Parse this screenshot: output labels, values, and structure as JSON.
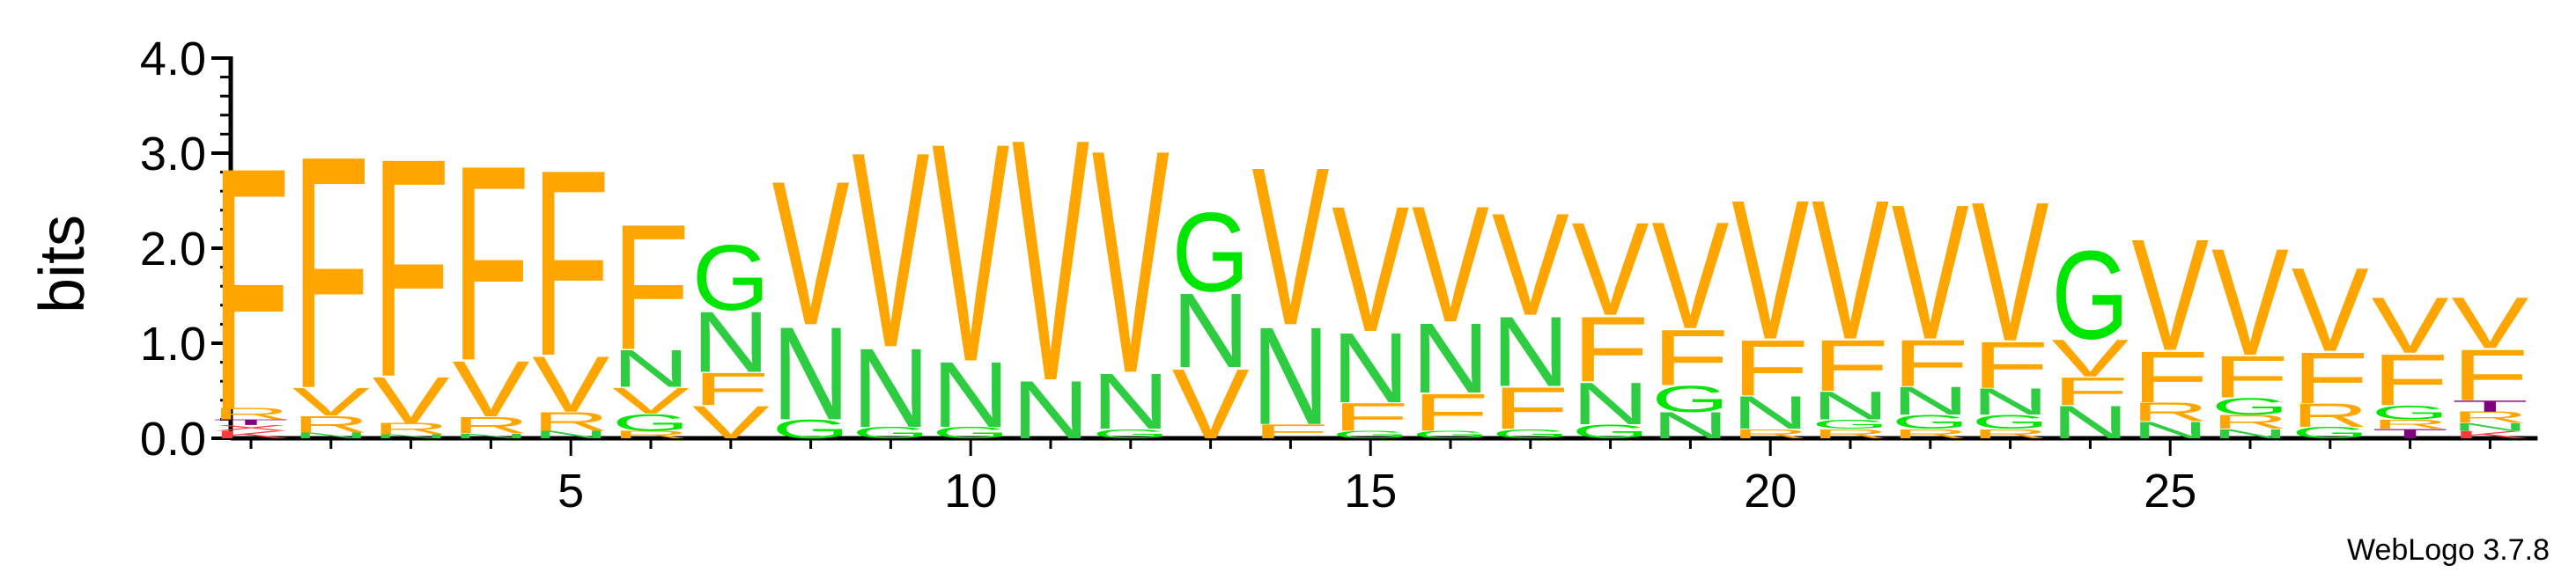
{
  "chart_data": {
    "type": "sequence-logo",
    "ylabel": "bits",
    "ylim": [
      0,
      4.0
    ],
    "y_ticks": [
      "0.0",
      "1.0",
      "2.0",
      "3.0",
      "4.0"
    ],
    "x_ticks": [
      5,
      10,
      15,
      20,
      25
    ],
    "colors": {
      "F": "#FFA500",
      "V": "#FFA500",
      "R": "#FFA500",
      "N": "#2ECC40",
      "G": "#00E600",
      "T": "#800080",
      "K": "#FF3B3B"
    },
    "positions": [
      {
        "pos": 1,
        "stack": [
          [
            "K",
            0.08
          ],
          [
            "X",
            0.06
          ],
          [
            "T",
            0.06
          ],
          [
            "R",
            0.12
          ],
          [
            "F",
            2.6
          ]
        ]
      },
      {
        "pos": 2,
        "stack": [
          [
            "N",
            0.06
          ],
          [
            "R",
            0.18
          ],
          [
            "V",
            0.3
          ],
          [
            "F",
            2.5
          ]
        ]
      },
      {
        "pos": 3,
        "stack": [
          [
            "N",
            0.04
          ],
          [
            "R",
            0.12
          ],
          [
            "V",
            0.5
          ],
          [
            "F",
            2.35
          ]
        ]
      },
      {
        "pos": 4,
        "stack": [
          [
            "N",
            0.05
          ],
          [
            "R",
            0.18
          ],
          [
            "V",
            0.6
          ],
          [
            "F",
            2.1
          ]
        ]
      },
      {
        "pos": 5,
        "stack": [
          [
            "N",
            0.08
          ],
          [
            "R",
            0.2
          ],
          [
            "V",
            0.6
          ],
          [
            "F",
            2.0
          ]
        ]
      },
      {
        "pos": 6,
        "stack": [
          [
            "R",
            0.08
          ],
          [
            "G",
            0.18
          ],
          [
            "V",
            0.28
          ],
          [
            "N",
            0.4
          ],
          [
            "F",
            1.35
          ]
        ]
      },
      {
        "pos": 7,
        "stack": [
          [
            "V",
            0.35
          ],
          [
            "F",
            0.35
          ],
          [
            "N",
            0.65
          ],
          [
            "G",
            0.7
          ]
        ]
      },
      {
        "pos": 8,
        "stack": [
          [
            "G",
            0.2
          ],
          [
            "N",
            1.0
          ],
          [
            "V",
            1.55
          ]
        ]
      },
      {
        "pos": 9,
        "stack": [
          [
            "G",
            0.12
          ],
          [
            "N",
            0.85
          ],
          [
            "V",
            2.1
          ]
        ]
      },
      {
        "pos": 10,
        "stack": [
          [
            "G",
            0.12
          ],
          [
            "N",
            0.7
          ],
          [
            "V",
            2.35
          ]
        ]
      },
      {
        "pos": 11,
        "stack": [
          [
            "N",
            0.62
          ],
          [
            "V",
            2.6
          ]
        ]
      },
      {
        "pos": 12,
        "stack": [
          [
            "G",
            0.1
          ],
          [
            "N",
            0.6
          ],
          [
            "V",
            2.4
          ]
        ]
      },
      {
        "pos": 13,
        "stack": [
          [
            "V",
            0.75
          ],
          [
            "N",
            0.8
          ],
          [
            "G",
            0.85
          ]
        ]
      },
      {
        "pos": 14,
        "stack": [
          [
            "F",
            0.15
          ],
          [
            "N",
            1.05
          ],
          [
            "V",
            1.7
          ]
        ]
      },
      {
        "pos": 15,
        "stack": [
          [
            "G",
            0.08
          ],
          [
            "F",
            0.3
          ],
          [
            "N",
            0.75
          ],
          [
            "V",
            1.35
          ]
        ]
      },
      {
        "pos": 16,
        "stack": [
          [
            "G",
            0.08
          ],
          [
            "F",
            0.4
          ],
          [
            "N",
            0.75
          ],
          [
            "V",
            1.25
          ]
        ]
      },
      {
        "pos": 17,
        "stack": [
          [
            "G",
            0.1
          ],
          [
            "F",
            0.45
          ],
          [
            "N",
            0.75
          ],
          [
            "V",
            1.1
          ]
        ]
      },
      {
        "pos": 18,
        "stack": [
          [
            "G",
            0.15
          ],
          [
            "N",
            0.45
          ],
          [
            "F",
            0.7
          ],
          [
            "V",
            1.0
          ]
        ]
      },
      {
        "pos": 19,
        "stack": [
          [
            "N",
            0.28
          ],
          [
            "G",
            0.28
          ],
          [
            "F",
            0.6
          ],
          [
            "V",
            1.15
          ]
        ]
      },
      {
        "pos": 20,
        "stack": [
          [
            "R",
            0.1
          ],
          [
            "N",
            0.35
          ],
          [
            "F",
            0.6
          ],
          [
            "V",
            1.5
          ]
        ]
      },
      {
        "pos": 21,
        "stack": [
          [
            "R",
            0.1
          ],
          [
            "G",
            0.1
          ],
          [
            "N",
            0.3
          ],
          [
            "F",
            0.55
          ],
          [
            "V",
            1.5
          ]
        ]
      },
      {
        "pos": 22,
        "stack": [
          [
            "R",
            0.1
          ],
          [
            "G",
            0.15
          ],
          [
            "N",
            0.3
          ],
          [
            "F",
            0.5
          ],
          [
            "V",
            1.45
          ]
        ]
      },
      {
        "pos": 23,
        "stack": [
          [
            "R",
            0.1
          ],
          [
            "G",
            0.15
          ],
          [
            "N",
            0.28
          ],
          [
            "F",
            0.5
          ],
          [
            "V",
            1.5
          ]
        ]
      },
      {
        "pos": 24,
        "stack": [
          [
            "N",
            0.35
          ],
          [
            "F",
            0.3
          ],
          [
            "V",
            0.4
          ],
          [
            "G",
            0.95
          ]
        ]
      },
      {
        "pos": 25,
        "stack": [
          [
            "N",
            0.18
          ],
          [
            "R",
            0.2
          ],
          [
            "F",
            0.55
          ],
          [
            "V",
            1.2
          ]
        ]
      },
      {
        "pos": 26,
        "stack": [
          [
            "N",
            0.1
          ],
          [
            "R",
            0.15
          ],
          [
            "G",
            0.18
          ],
          [
            "F",
            0.45
          ],
          [
            "V",
            1.15
          ]
        ]
      },
      {
        "pos": 27,
        "stack": [
          [
            "G",
            0.12
          ],
          [
            "R",
            0.25
          ],
          [
            "F",
            0.55
          ],
          [
            "V",
            0.9
          ]
        ]
      },
      {
        "pos": 28,
        "stack": [
          [
            "T",
            0.1
          ],
          [
            "R",
            0.1
          ],
          [
            "G",
            0.15
          ],
          [
            "F",
            0.55
          ],
          [
            "V",
            0.6
          ]
        ]
      },
      {
        "pos": 29,
        "stack": [
          [
            "K",
            0.08
          ],
          [
            "N",
            0.08
          ],
          [
            "R",
            0.12
          ],
          [
            "T",
            0.12
          ],
          [
            "F",
            0.55
          ],
          [
            "V",
            0.55
          ]
        ]
      }
    ]
  },
  "credit": "WebLogo 3.7.8"
}
